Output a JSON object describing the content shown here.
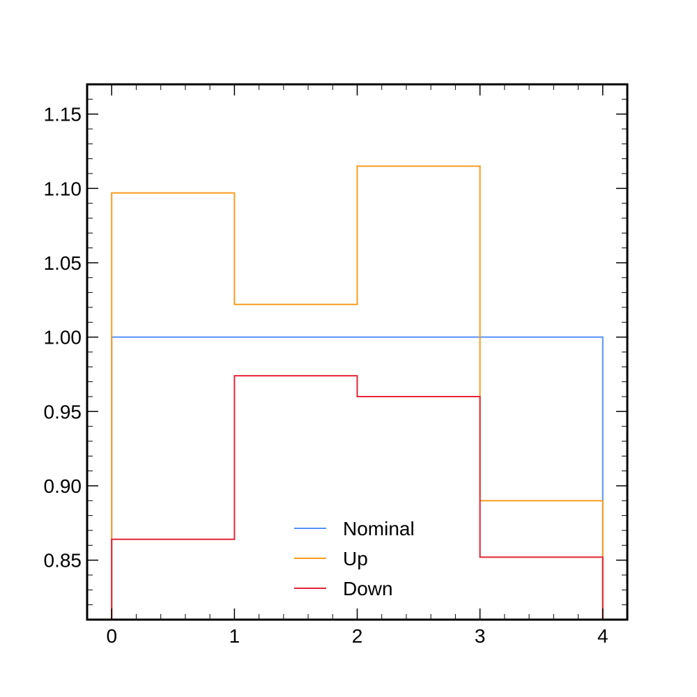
{
  "chart_data": {
    "type": "line",
    "drawstyle": "step-histogram",
    "bin_edges": [
      0,
      1,
      2,
      3,
      4
    ],
    "xlim": [
      -0.2,
      4.2
    ],
    "ylim": [
      0.81,
      1.17
    ],
    "x_ticks": [
      {
        "value": 0,
        "label": "0"
      },
      {
        "value": 1,
        "label": "1"
      },
      {
        "value": 2,
        "label": "2"
      },
      {
        "value": 3,
        "label": "3"
      },
      {
        "value": 4,
        "label": "4"
      }
    ],
    "y_ticks": [
      {
        "value": 0.85,
        "label": "0.85"
      },
      {
        "value": 0.9,
        "label": "0.90"
      },
      {
        "value": 0.95,
        "label": "0.95"
      },
      {
        "value": 1.0,
        "label": "1.00"
      },
      {
        "value": 1.05,
        "label": "1.05"
      },
      {
        "value": 1.1,
        "label": "1.10"
      },
      {
        "value": 1.15,
        "label": "1.15"
      }
    ],
    "x_minor_step": 0.2,
    "y_minor_step": 0.01,
    "grid": false,
    "legend_position": "bottom-center",
    "series": [
      {
        "name": "Nominal",
        "color": "#5790fc",
        "values": [
          1.0,
          1.0,
          1.0,
          1.0
        ]
      },
      {
        "name": "Up",
        "color": "#f89c20",
        "values": [
          1.097,
          1.022,
          1.115,
          0.89
        ]
      },
      {
        "name": "Down",
        "color": "#e42536",
        "values": [
          0.864,
          0.974,
          0.96,
          0.852
        ]
      }
    ]
  }
}
